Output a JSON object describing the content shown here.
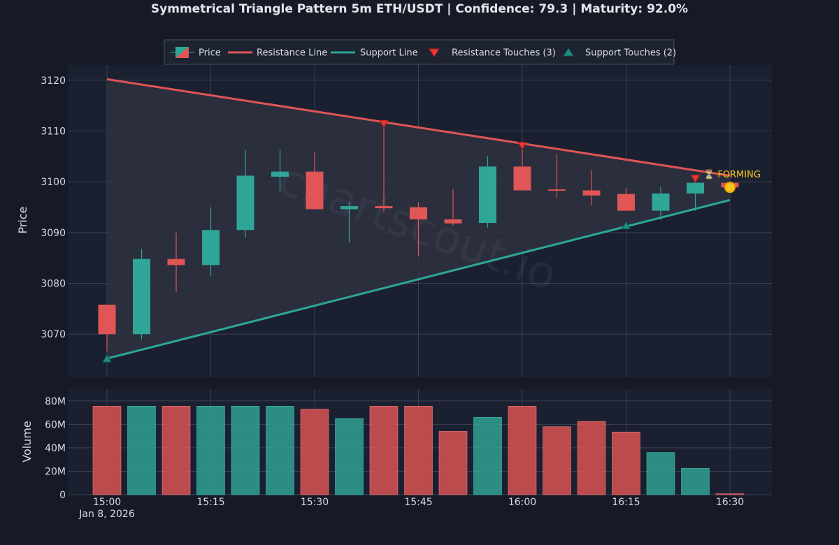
{
  "title": "Symmetrical Triangle Pattern 5m ETH/USDT | Confidence: 79.3 | Maturity: 92.0%",
  "watermark": "chartscout.io",
  "colors": {
    "background": "#151a26",
    "plot_bg": "#1b2030",
    "grid": "#3a404f",
    "text": "#d8dbe2",
    "up": "#2fa697",
    "down": "#e05555",
    "resistance": "#e05555",
    "support": "#2fa697",
    "pattern_fill": "#2d3140",
    "forming": "#f5c518"
  },
  "legend": {
    "price": "Price",
    "resistance_line": "Resistance Line",
    "support_line": "Support Line",
    "resistance_touches": "Resistance Touches (3)",
    "support_touches": "Support Touches (2)"
  },
  "forming_label": "⏳ FORMING",
  "chart_data": {
    "type": "candlestick",
    "title": "Symmetrical Triangle Pattern 5m ETH/USDT | Confidence: 79.3 | Maturity: 92.0%",
    "interval_minutes": 5,
    "x_start": "15:00",
    "x_ticks": [
      "15:00",
      "15:15",
      "15:30",
      "15:45",
      "16:00",
      "16:15",
      "16:30"
    ],
    "x_tick_minutes": [
      0,
      15,
      30,
      45,
      60,
      75,
      90
    ],
    "x_date_label": "Jan 8, 2026",
    "price_axis": {
      "label": "Price",
      "ylim": [
        3061.5,
        3123
      ],
      "ticks": [
        3070,
        3080,
        3090,
        3100,
        3110,
        3120
      ]
    },
    "volume_axis": {
      "label": "Volume",
      "ylim": [
        0,
        90000000
      ],
      "ticks": [
        0,
        20000000,
        40000000,
        60000000,
        80000000
      ],
      "tick_labels": [
        "0",
        "20M",
        "40M",
        "60M",
        "80M"
      ]
    },
    "candles": [
      {
        "t": 0,
        "open": 3075.8,
        "high": 3075.8,
        "low": 3066.6,
        "close": 3070.0,
        "volume": 75500000
      },
      {
        "t": 5,
        "open": 3070.0,
        "high": 3086.8,
        "low": 3069.0,
        "close": 3084.8,
        "volume": 75500000
      },
      {
        "t": 10,
        "open": 3084.8,
        "high": 3090.0,
        "low": 3078.3,
        "close": 3083.6,
        "volume": 75500000
      },
      {
        "t": 15,
        "open": 3083.6,
        "high": 3095.0,
        "low": 3081.5,
        "close": 3090.5,
        "volume": 75500000
      },
      {
        "t": 20,
        "open": 3090.5,
        "high": 3106.3,
        "low": 3089.0,
        "close": 3101.2,
        "volume": 75500000
      },
      {
        "t": 25,
        "open": 3101.0,
        "high": 3106.3,
        "low": 3098.0,
        "close": 3102.0,
        "volume": 75500000
      },
      {
        "t": 30,
        "open": 3102.0,
        "high": 3106.0,
        "low": 3094.6,
        "close": 3094.6,
        "volume": 73000000
      },
      {
        "t": 35,
        "open": 3094.6,
        "high": 3096.0,
        "low": 3088.0,
        "close": 3095.2,
        "volume": 65000000
      },
      {
        "t": 40,
        "open": 3095.2,
        "high": 3111.5,
        "low": 3094.0,
        "close": 3094.8,
        "volume": 75500000
      },
      {
        "t": 45,
        "open": 3095.0,
        "high": 3096.0,
        "low": 3085.3,
        "close": 3092.6,
        "volume": 75500000
      },
      {
        "t": 50,
        "open": 3092.6,
        "high": 3098.6,
        "low": 3091.3,
        "close": 3091.8,
        "volume": 54000000
      },
      {
        "t": 55,
        "open": 3091.9,
        "high": 3105.0,
        "low": 3091.0,
        "close": 3103.0,
        "volume": 66000000
      },
      {
        "t": 60,
        "open": 3103.0,
        "high": 3107.4,
        "low": 3098.3,
        "close": 3098.3,
        "volume": 75500000
      },
      {
        "t": 65,
        "open": 3098.5,
        "high": 3105.5,
        "low": 3096.8,
        "close": 3098.3,
        "volume": 58000000
      },
      {
        "t": 70,
        "open": 3098.3,
        "high": 3102.3,
        "low": 3095.3,
        "close": 3097.3,
        "volume": 62500000
      },
      {
        "t": 75,
        "open": 3097.6,
        "high": 3098.8,
        "low": 3094.3,
        "close": 3094.3,
        "volume": 53500000
      },
      {
        "t": 80,
        "open": 3094.3,
        "high": 3099.0,
        "low": 3092.5,
        "close": 3097.7,
        "volume": 36000000
      },
      {
        "t": 85,
        "open": 3097.7,
        "high": 3100.5,
        "low": 3094.3,
        "close": 3099.8,
        "volume": 22500000
      },
      {
        "t": 90,
        "open": 3099.8,
        "high": 3099.9,
        "low": 3098.8,
        "close": 3098.9,
        "volume": 800000
      }
    ],
    "resistance_line": {
      "start": {
        "t": 0,
        "price": 3120.2
      },
      "end": {
        "t": 90,
        "price": 3101.2
      }
    },
    "support_line": {
      "start": {
        "t": 0,
        "price": 3065.2
      },
      "end": {
        "t": 90,
        "price": 3096.4
      }
    },
    "resistance_touches": [
      {
        "t": 40,
        "price": 3111.4
      },
      {
        "t": 60,
        "price": 3107.1
      },
      {
        "t": 85,
        "price": 3100.6
      }
    ],
    "support_touches": [
      {
        "t": 0,
        "price": 3065.2
      },
      {
        "t": 75,
        "price": 3091.4
      }
    ],
    "forming_point": {
      "t": 90,
      "price": 3098.9
    }
  }
}
